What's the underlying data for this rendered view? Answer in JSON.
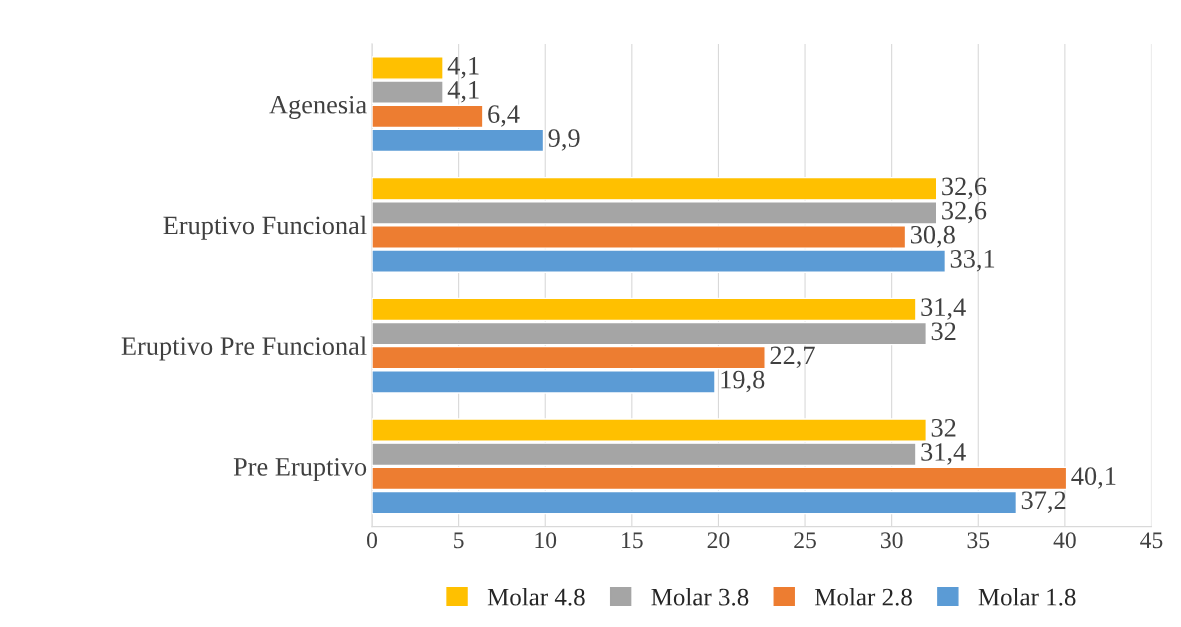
{
  "chart_data": {
    "type": "bar",
    "orientation": "horizontal",
    "categories": [
      "Agenesia",
      "Eruptivo Funcional",
      "Eruptivo Pre Funcional",
      "Pre Eruptivo"
    ],
    "series": [
      {
        "name": "Molar 1.8",
        "color": "#5b9bd5",
        "values": [
          9.9,
          33.1,
          19.8,
          37.2
        ],
        "value_labels": [
          "9,9",
          "33,1",
          "19,8",
          "37,2"
        ]
      },
      {
        "name": "Molar 2.8",
        "color": "#ed7d31",
        "values": [
          6.4,
          30.8,
          22.7,
          40.1
        ],
        "value_labels": [
          "6,4",
          "30,8",
          "22,7",
          "40,1"
        ]
      },
      {
        "name": "Molar 3.8",
        "color": "#a5a5a5",
        "values": [
          4.1,
          32.6,
          32,
          31.4
        ],
        "value_labels": [
          "4,1",
          "32,6",
          "32",
          "31,4"
        ]
      },
      {
        "name": "Molar 4.8",
        "color": "#ffc000",
        "values": [
          4.1,
          32.6,
          31.4,
          32
        ],
        "value_labels": [
          "4,1",
          "32,6",
          "31,4",
          "32"
        ]
      }
    ],
    "xlim": [
      0,
      45
    ],
    "xticks": [
      0,
      5,
      10,
      15,
      20,
      25,
      30,
      35,
      40,
      45
    ],
    "grid": "x",
    "legend": "bottom"
  }
}
